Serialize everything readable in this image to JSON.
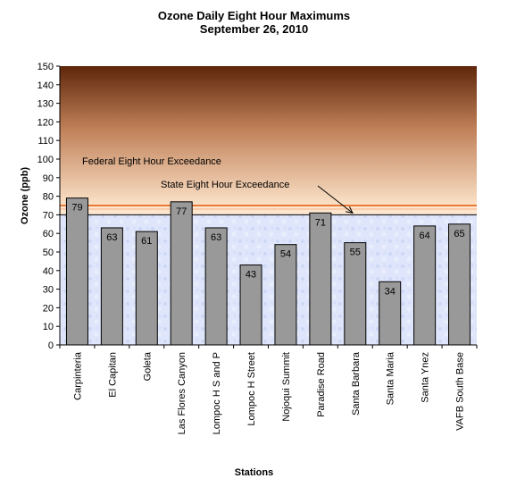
{
  "chart_data": {
    "type": "bar",
    "title": "Ozone Daily Eight Hour Maximums",
    "subtitle": "September 26, 2010",
    "xlabel": "Stations",
    "ylabel": "Ozone (ppb)",
    "ylim": [
      0,
      150
    ],
    "yticks": [
      0,
      10,
      20,
      30,
      40,
      50,
      60,
      70,
      80,
      90,
      100,
      110,
      120,
      130,
      140,
      150
    ],
    "categories": [
      "Carpinteria",
      "El Capitan",
      "Goleta",
      "Las Flores Canyon",
      "Lompoc H S and P",
      "Lompoc H Street",
      "Nojoqui Summit",
      "Paradise Road",
      "Santa Barbara",
      "Santa Maria",
      "Santa Ynez",
      "VAFB South Base"
    ],
    "values": [
      79,
      63,
      61,
      77,
      63,
      43,
      54,
      71,
      55,
      34,
      64,
      65
    ],
    "thresholds": [
      {
        "label": "Federal Eight Hour Exceedance",
        "value": 75
      },
      {
        "label": "State Eight Hour Exceedance",
        "value": 70
      }
    ],
    "colors": {
      "bar": "#999999",
      "upper_band_top": "#6b2f0e",
      "upper_band_bottom": "#fde3c8",
      "lower_band": "#dbe4fb",
      "threshold_line": "#e07b39"
    }
  }
}
